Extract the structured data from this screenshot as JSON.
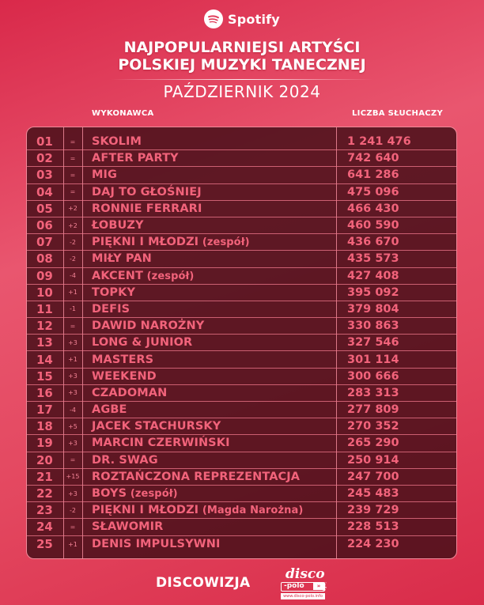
{
  "header": {
    "brand": "Spotify",
    "brand_icon": "spotify-logo-icon",
    "title_line1": "NAJPOPULARNIEJSI ARTYŚCI",
    "title_line2": "POLSKIEJ MUZYKI TANECZNEJ",
    "subtitle": "PAŹDZIERNIK 2024"
  },
  "columns": {
    "artist": "WYKONAWCA",
    "listeners": "LICZBA SŁUCHACZY"
  },
  "colors": {
    "background": "#e0405c",
    "table_bg": "#4b101a",
    "table_text": "#f2637b",
    "border": "#f08a9a"
  },
  "rows": [
    {
      "rank": "01",
      "change": "=",
      "artist": "SKOLIM",
      "suffix": "",
      "listeners": "1 241 476"
    },
    {
      "rank": "02",
      "change": "=",
      "artist": "AFTER PARTY",
      "suffix": "",
      "listeners": "742 640"
    },
    {
      "rank": "03",
      "change": "=",
      "artist": "MIG",
      "suffix": "",
      "listeners": "641 286"
    },
    {
      "rank": "04",
      "change": "=",
      "artist": "DAJ TO GŁOŚNIEJ",
      "suffix": "",
      "listeners": "475 096"
    },
    {
      "rank": "05",
      "change": "+2",
      "artist": "RONNIE FERRARI",
      "suffix": "",
      "listeners": "466 430"
    },
    {
      "rank": "06",
      "change": "+2",
      "artist": "ŁOBUZY",
      "suffix": "",
      "listeners": "460 590"
    },
    {
      "rank": "07",
      "change": "-2",
      "artist": "PIĘKNI I MŁODZI",
      "suffix": " (zespół)",
      "listeners": "436 670"
    },
    {
      "rank": "08",
      "change": "-2",
      "artist": "MIŁY PAN",
      "suffix": "",
      "listeners": "435 573"
    },
    {
      "rank": "09",
      "change": "-4",
      "artist": "AKCENT",
      "suffix": " (zespół)",
      "listeners": "427 408"
    },
    {
      "rank": "10",
      "change": "+1",
      "artist": "TOPKY",
      "suffix": "",
      "listeners": "395 092"
    },
    {
      "rank": "11",
      "change": "-1",
      "artist": "DEFIS",
      "suffix": "",
      "listeners": "379 804"
    },
    {
      "rank": "12",
      "change": "=",
      "artist": "DAWID NAROŻNY",
      "suffix": "",
      "listeners": "330 863"
    },
    {
      "rank": "13",
      "change": "+3",
      "artist": "LONG & JUNIOR",
      "suffix": "",
      "listeners": "327 546"
    },
    {
      "rank": "14",
      "change": "+1",
      "artist": "MASTERS",
      "suffix": "",
      "listeners": "301 114"
    },
    {
      "rank": "15",
      "change": "+3",
      "artist": "WEEKEND",
      "suffix": "",
      "listeners": "300 666"
    },
    {
      "rank": "16",
      "change": "+3",
      "artist": "CZADOMAN",
      "suffix": "",
      "listeners": "283 313"
    },
    {
      "rank": "17",
      "change": "-4",
      "artist": "AGBE",
      "suffix": "",
      "listeners": "277 809"
    },
    {
      "rank": "18",
      "change": "+5",
      "artist": "JACEK STACHURSKY",
      "suffix": "",
      "listeners": "270 352"
    },
    {
      "rank": "19",
      "change": "+3",
      "artist": "MARCIN CZERWIŃSKI",
      "suffix": "",
      "listeners": "265 290"
    },
    {
      "rank": "20",
      "change": "=",
      "artist": "DR. SWAG",
      "suffix": "",
      "listeners": "250 914"
    },
    {
      "rank": "21",
      "change": "+15",
      "artist": "ROZTAŃCZONA REPREZENTACJA",
      "suffix": "",
      "listeners": "247 700"
    },
    {
      "rank": "22",
      "change": "+3",
      "artist": "BOYS",
      "suffix": " (zespół)",
      "listeners": "245 483"
    },
    {
      "rank": "23",
      "change": "-2",
      "artist": "PIĘKNI I MŁODZI",
      "suffix": " (Magda Narożna)",
      "listeners": "239 729"
    },
    {
      "rank": "24",
      "change": "=",
      "artist": "SŁAWOMIR",
      "suffix": "",
      "listeners": "228 513"
    },
    {
      "rank": "25",
      "change": "+1",
      "artist": "DENIS IMPULSYWNI",
      "suffix": "",
      "listeners": "224 230"
    }
  ],
  "footer": {
    "brand": "DISCOWIZJA",
    "logo_top": "disco",
    "logo_mid": "-polo",
    "logo_arrow": "»",
    "logo_side": "info",
    "logo_url": "www.disco-polo.info"
  }
}
